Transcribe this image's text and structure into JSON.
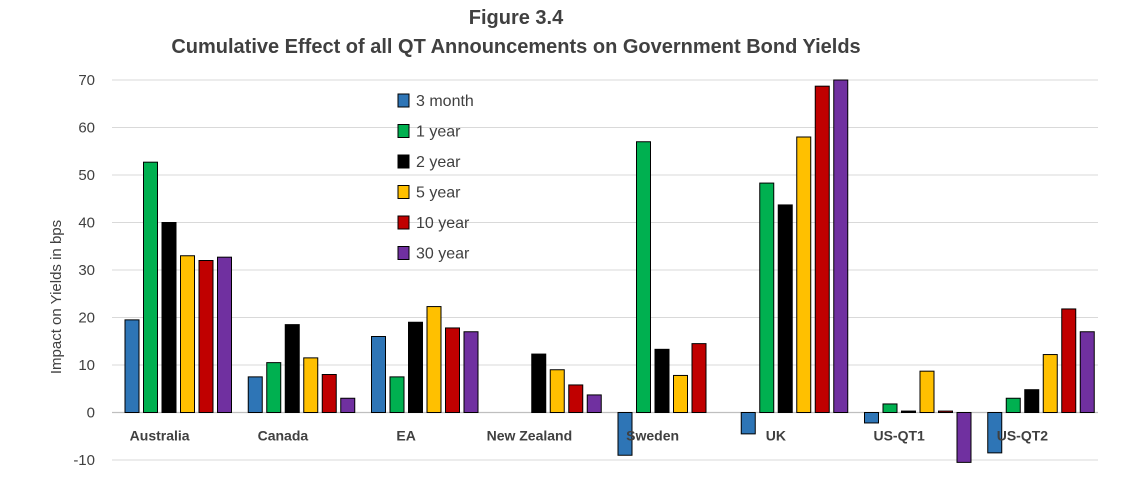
{
  "chart_data": {
    "type": "bar",
    "title": "Figure 3.4",
    "subtitle": "Cumulative Effect of all QT Announcements on Government Bond Yields",
    "xlabel": "",
    "ylabel": "Impact on Yields in bps",
    "ylim": [
      -10,
      70
    ],
    "yticks": [
      -10,
      0,
      10,
      20,
      30,
      40,
      50,
      60,
      70
    ],
    "grid": true,
    "legend_position": "top-left",
    "categories": [
      "Australia",
      "Canada",
      "EA",
      "New Zealand",
      "Sweden",
      "UK",
      "US-QT1",
      "US-QT2"
    ],
    "series": [
      {
        "name": "3 month",
        "color": "#2e75b6",
        "values": [
          19.5,
          7.5,
          16,
          0,
          -9,
          -4.5,
          -2.2,
          -8.5
        ]
      },
      {
        "name": "1 year",
        "color": "#00b050",
        "values": [
          52.7,
          10.5,
          7.5,
          0,
          57,
          48.3,
          1.8,
          3
        ]
      },
      {
        "name": "2 year",
        "color": "#000000",
        "values": [
          40,
          18.5,
          19,
          12.3,
          13.3,
          43.7,
          0.3,
          4.8
        ]
      },
      {
        "name": "5 year",
        "color": "#ffc000",
        "values": [
          33,
          11.5,
          22.3,
          9,
          7.8,
          58,
          8.7,
          12.2
        ]
      },
      {
        "name": "10 year",
        "color": "#c00000",
        "values": [
          32,
          8,
          17.8,
          5.8,
          14.5,
          68.7,
          0.3,
          21.8
        ]
      },
      {
        "name": "30 year",
        "color": "#7030a0",
        "values": [
          32.7,
          3,
          17,
          3.7,
          0,
          70,
          -10.5,
          17
        ]
      }
    ]
  }
}
